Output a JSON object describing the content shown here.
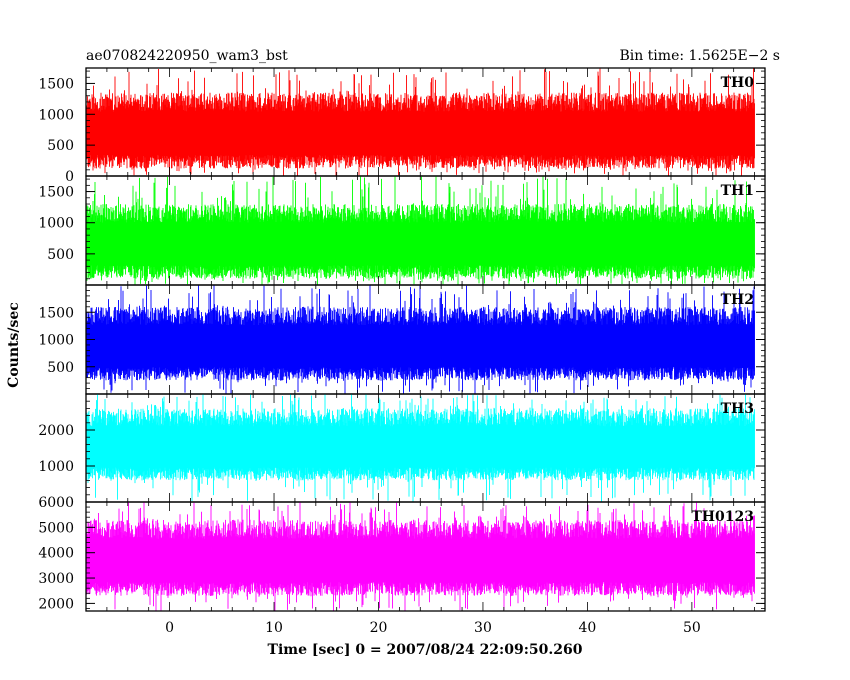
{
  "header": {
    "left_title": "ae070824220950_wam3_bst",
    "right_title": "Bin time: 1.5625E−2  s"
  },
  "chart_data": {
    "type": "line",
    "xlabel": "Time [sec] 0 = 2007/08/24 22:09:50.260",
    "ylabel": "Counts/sec",
    "xlim": [
      -8,
      57
    ],
    "x_ticks": [
      0,
      10,
      20,
      30,
      40,
      50
    ],
    "x_range_data": [
      -8,
      56
    ],
    "bin_time": "1.5625E-2 s",
    "panels": [
      {
        "name": "TH0",
        "color": "#ff0000",
        "ylim": [
          0,
          1750
        ],
        "y_ticks": [
          0,
          500,
          1000,
          1500
        ],
        "y_tick_labels": [
          "0",
          "500",
          "1000",
          "1500"
        ],
        "typical_low": 120,
        "typical_high": 1350,
        "mean": 700
      },
      {
        "name": "TH1",
        "color": "#00ff00",
        "ylim": [
          0,
          1750
        ],
        "y_ticks": [
          500,
          1000,
          1500
        ],
        "y_tick_labels": [
          "500",
          "1000",
          "1500"
        ],
        "typical_low": 100,
        "typical_high": 1300,
        "mean": 650
      },
      {
        "name": "TH2",
        "color": "#0000ff",
        "ylim": [
          0,
          2000
        ],
        "y_ticks": [
          500,
          1000,
          1500
        ],
        "y_tick_labels": [
          "500",
          "1000",
          "1500"
        ],
        "typical_low": 250,
        "typical_high": 1600,
        "mean": 900
      },
      {
        "name": "TH3",
        "color": "#00ffff",
        "ylim": [
          0,
          3000
        ],
        "y_ticks": [
          1000,
          2000
        ],
        "y_tick_labels": [
          "1000",
          "2000"
        ],
        "typical_low": 600,
        "typical_high": 2600,
        "mean": 1600
      },
      {
        "name": "TH0123",
        "color": "#ff00ff",
        "ylim": [
          1700,
          6000
        ],
        "y_ticks": [
          2000,
          3000,
          4000,
          5000,
          6000
        ],
        "y_tick_labels": [
          "2000",
          "3000",
          "4000",
          "5000",
          "6000"
        ],
        "typical_low": 2300,
        "typical_high": 5300,
        "mean": 3700
      }
    ]
  }
}
